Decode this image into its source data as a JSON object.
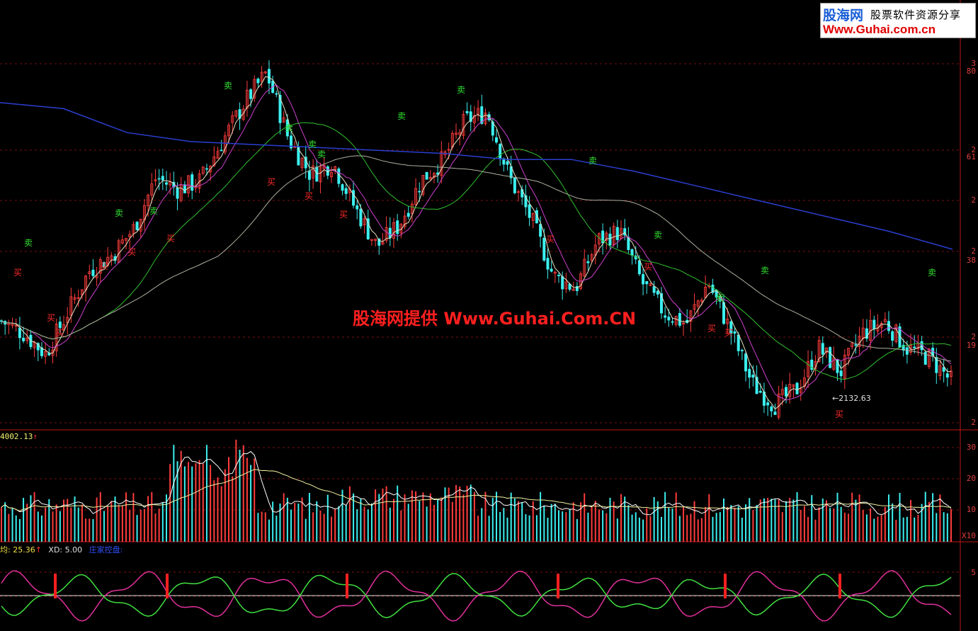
{
  "chart_data": [
    {
      "type": "candlestick",
      "panel": "price",
      "title": "",
      "main_trend": [
        2390,
        2350,
        2280,
        2420,
        2560,
        2610,
        2700,
        2870,
        2830,
        2860,
        2990,
        3120,
        3220,
        3000,
        2880,
        2920,
        2770,
        2640,
        2710,
        2860,
        2930,
        3060,
        3090,
        2870,
        2730,
        2540,
        2500,
        2660,
        2690,
        2520,
        2420,
        2380,
        2520,
        2360,
        2180,
        2110,
        2160,
        2300,
        2220,
        2350,
        2390,
        2300,
        2270,
        2190
      ],
      "ma_long_trend": [
        3120,
        3100,
        3020,
        2990,
        2980,
        2970,
        2960,
        2950,
        2930,
        2930,
        2890,
        2840,
        2790,
        2740,
        2690,
        2630
      ],
      "low_label": "2132.63",
      "buy_label": "买",
      "sell_label": "卖",
      "buy_signal_x": [
        25,
        72,
        85,
        147,
        186,
        241,
        383,
        436,
        485,
        777,
        915,
        1005,
        1029,
        1185
      ],
      "sell_signal_x": [
        40,
        168,
        217,
        322,
        408,
        441,
        454,
        567,
        651,
        837,
        929,
        1016,
        1080,
        1316
      ],
      "ylabels": [
        "3",
        "80",
        "2",
        "61",
        "2",
        "2",
        "38",
        "2",
        "19",
        "2"
      ],
      "colors": {
        "up": "#ff3c3c",
        "down": "#3cf0f0",
        "ma_long": "#2a3fd0",
        "ma_mid": "#e8e0c0",
        "ma_green": "#30c030",
        "ma_magenta": "#d040d0"
      }
    },
    {
      "type": "bar",
      "panel": "volume",
      "ylabels": [
        "30",
        "20",
        "10"
      ],
      "unit_label": "X10",
      "max_label": "4002.13"
    },
    {
      "type": "line",
      "panel": "indicator",
      "ylabels": [
        "5"
      ],
      "header": {
        "avg_label": "均: 25.36",
        "xd_label": "XD: 5.00",
        "control_label": "庄家控盘:"
      },
      "series": [
        {
          "name": "",
          "color": "#e0309a"
        },
        {
          "name": "",
          "color": "#40e040"
        }
      ]
    }
  ],
  "logo": {
    "cn": "股海网",
    "slogan": "股票软件资源分享",
    "url": "Www.Guhai.com.cn"
  },
  "watermark": "股海网提供 Www.Guhai.Com.CN"
}
